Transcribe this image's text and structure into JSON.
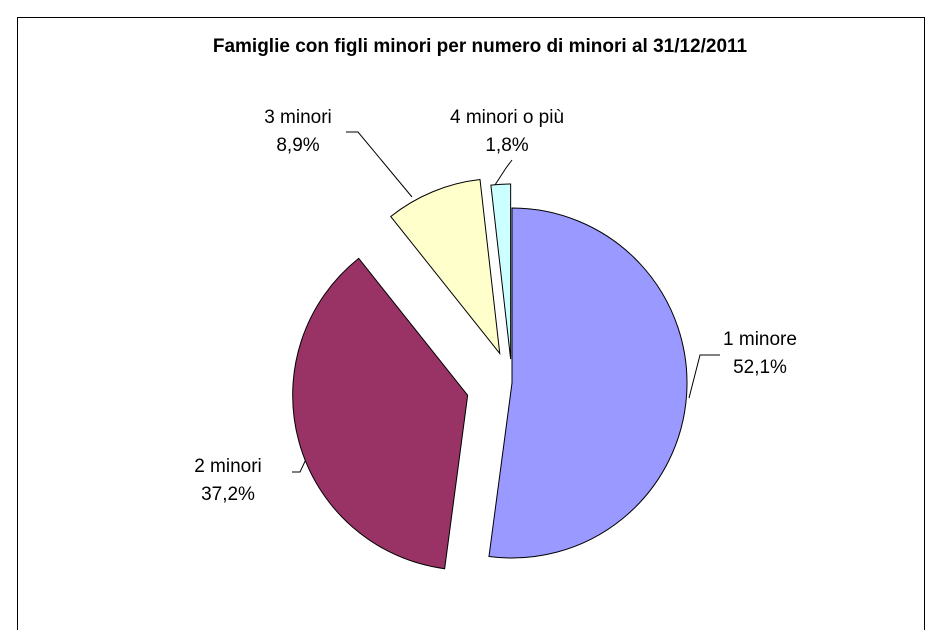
{
  "chart_data": {
    "type": "pie",
    "title": "Famiglie con figli minori per numero di minori al 31/12/2011",
    "categories": [
      "1 minore",
      "2 minori",
      "3 minori",
      "4 minori o più"
    ],
    "values": [
      52.1,
      37.2,
      8.9,
      1.8
    ],
    "value_labels": [
      "52,1%",
      "37,2%",
      "8,9%",
      "1,8%"
    ],
    "colors": [
      "#9999ff",
      "#993366",
      "#ffffcc",
      "#ccffff"
    ]
  }
}
